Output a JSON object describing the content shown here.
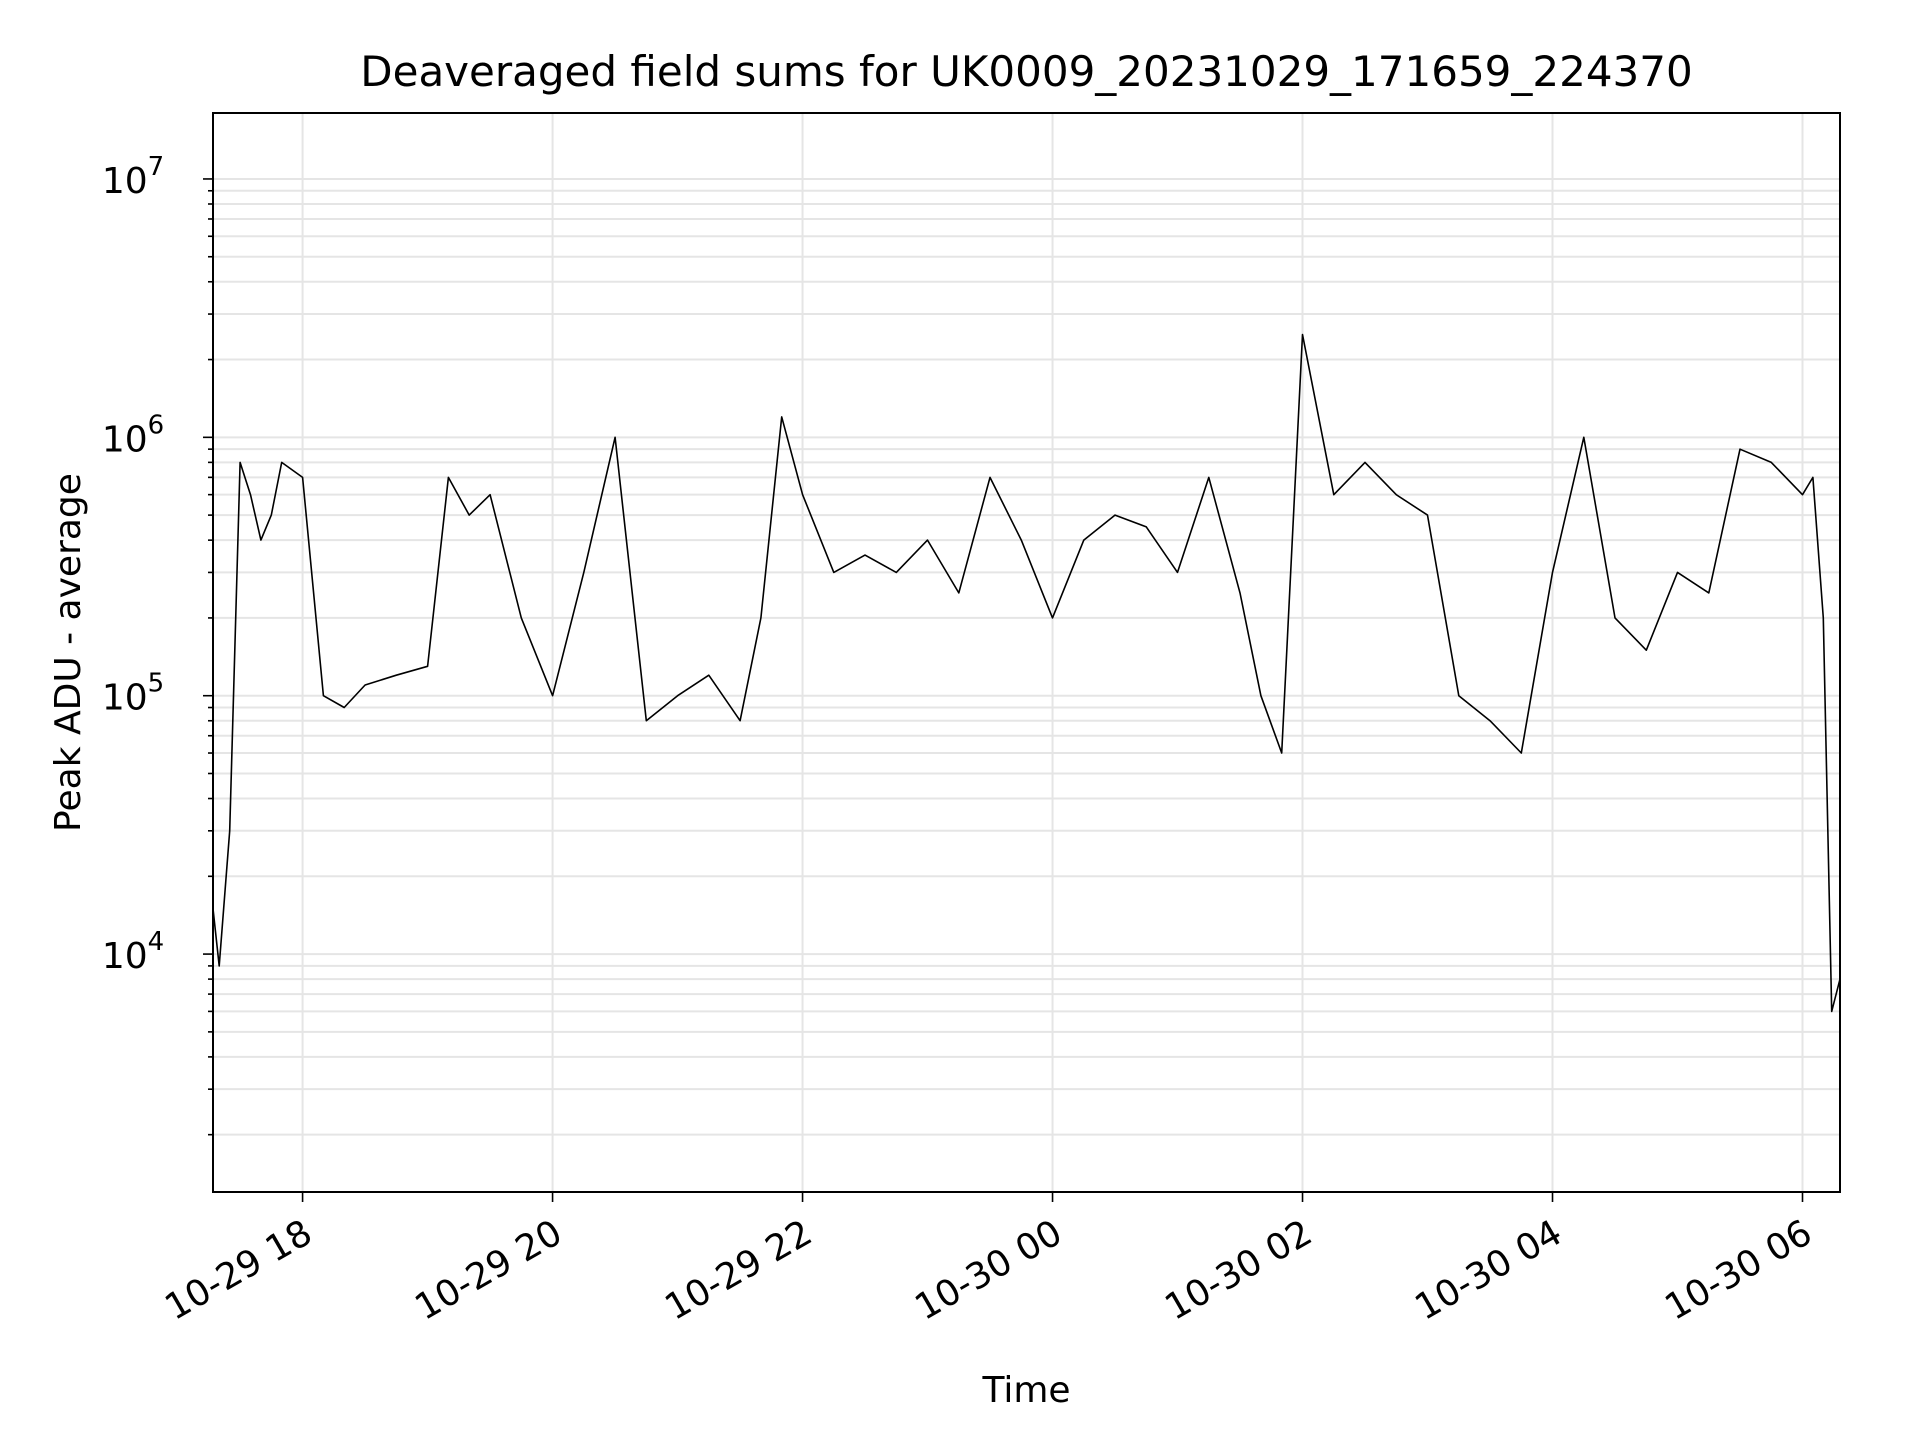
{
  "chart_data": {
    "type": "line",
    "title": "Deaveraged field sums for UK0009_20231029_171659_224370",
    "xlabel": "Time",
    "ylabel": "Peak ADU - average",
    "y_scale": "log",
    "ylim": [
      1200,
      18000000
    ],
    "xlim": [
      "2023-10-29 17:17",
      "2023-10-30 06:18"
    ],
    "x_tick_labels": [
      "10-29 18",
      "10-29 20",
      "10-29 22",
      "10-30 00",
      "10-30 02",
      "10-30 04",
      "10-30 06"
    ],
    "x_tick_values": [
      "2023-10-29 18:00",
      "2023-10-29 20:00",
      "2023-10-29 22:00",
      "2023-10-30 00:00",
      "2023-10-30 02:00",
      "2023-10-30 04:00",
      "2023-10-30 06:00"
    ],
    "y_tick_labels": [
      {
        "base": "10",
        "exp": "4",
        "value": 10000
      },
      {
        "base": "10",
        "exp": "5",
        "value": 100000
      },
      {
        "base": "10",
        "exp": "6",
        "value": 1000000
      },
      {
        "base": "10",
        "exp": "7",
        "value": 10000000
      }
    ],
    "grid": true,
    "line_color": "#000000",
    "grid_color": "#e5e5e5",
    "series": [
      {
        "x": [
          "2023-10-29 17:17",
          "2023-10-29 17:20",
          "2023-10-29 17:25",
          "2023-10-29 17:30",
          "2023-10-29 17:35",
          "2023-10-29 17:40",
          "2023-10-29 17:45",
          "2023-10-29 17:50",
          "2023-10-29 18:00",
          "2023-10-29 18:10",
          "2023-10-29 18:20",
          "2023-10-29 18:30",
          "2023-10-29 18:45",
          "2023-10-29 19:00",
          "2023-10-29 19:10",
          "2023-10-29 19:20",
          "2023-10-29 19:30",
          "2023-10-29 19:45",
          "2023-10-29 20:00",
          "2023-10-29 20:15",
          "2023-10-29 20:30",
          "2023-10-29 20:45",
          "2023-10-29 21:00",
          "2023-10-29 21:15",
          "2023-10-29 21:30",
          "2023-10-29 21:40",
          "2023-10-29 21:50",
          "2023-10-29 22:00",
          "2023-10-29 22:15",
          "2023-10-29 22:30",
          "2023-10-29 22:45",
          "2023-10-29 23:00",
          "2023-10-29 23:15",
          "2023-10-29 23:30",
          "2023-10-29 23:45",
          "2023-10-30 00:00",
          "2023-10-30 00:15",
          "2023-10-30 00:30",
          "2023-10-30 00:45",
          "2023-10-30 01:00",
          "2023-10-30 01:15",
          "2023-10-30 01:30",
          "2023-10-30 01:40",
          "2023-10-30 01:50",
          "2023-10-30 02:00",
          "2023-10-30 02:15",
          "2023-10-30 02:30",
          "2023-10-30 02:45",
          "2023-10-30 03:00",
          "2023-10-30 03:15",
          "2023-10-30 03:30",
          "2023-10-30 03:45",
          "2023-10-30 04:00",
          "2023-10-30 04:15",
          "2023-10-30 04:30",
          "2023-10-30 04:45",
          "2023-10-30 05:00",
          "2023-10-30 05:15",
          "2023-10-30 05:30",
          "2023-10-30 05:45",
          "2023-10-30 06:00",
          "2023-10-30 06:05",
          "2023-10-30 06:10",
          "2023-10-30 06:14",
          "2023-10-30 06:18"
        ],
        "values": [
          15000,
          9000,
          30000,
          800000,
          600000,
          400000,
          500000,
          800000,
          700000,
          100000,
          90000,
          110000,
          120000,
          130000,
          700000,
          500000,
          600000,
          200000,
          100000,
          300000,
          1000000,
          80000,
          100000,
          120000,
          80000,
          200000,
          1200000,
          600000,
          300000,
          350000,
          300000,
          400000,
          250000,
          700000,
          400000,
          200000,
          400000,
          500000,
          450000,
          300000,
          700000,
          250000,
          100000,
          60000,
          2500000,
          600000,
          800000,
          600000,
          500000,
          100000,
          80000,
          60000,
          300000,
          1000000,
          200000,
          150000,
          300000,
          250000,
          900000,
          800000,
          600000,
          700000,
          200000,
          6000,
          8000
        ]
      }
    ]
  }
}
